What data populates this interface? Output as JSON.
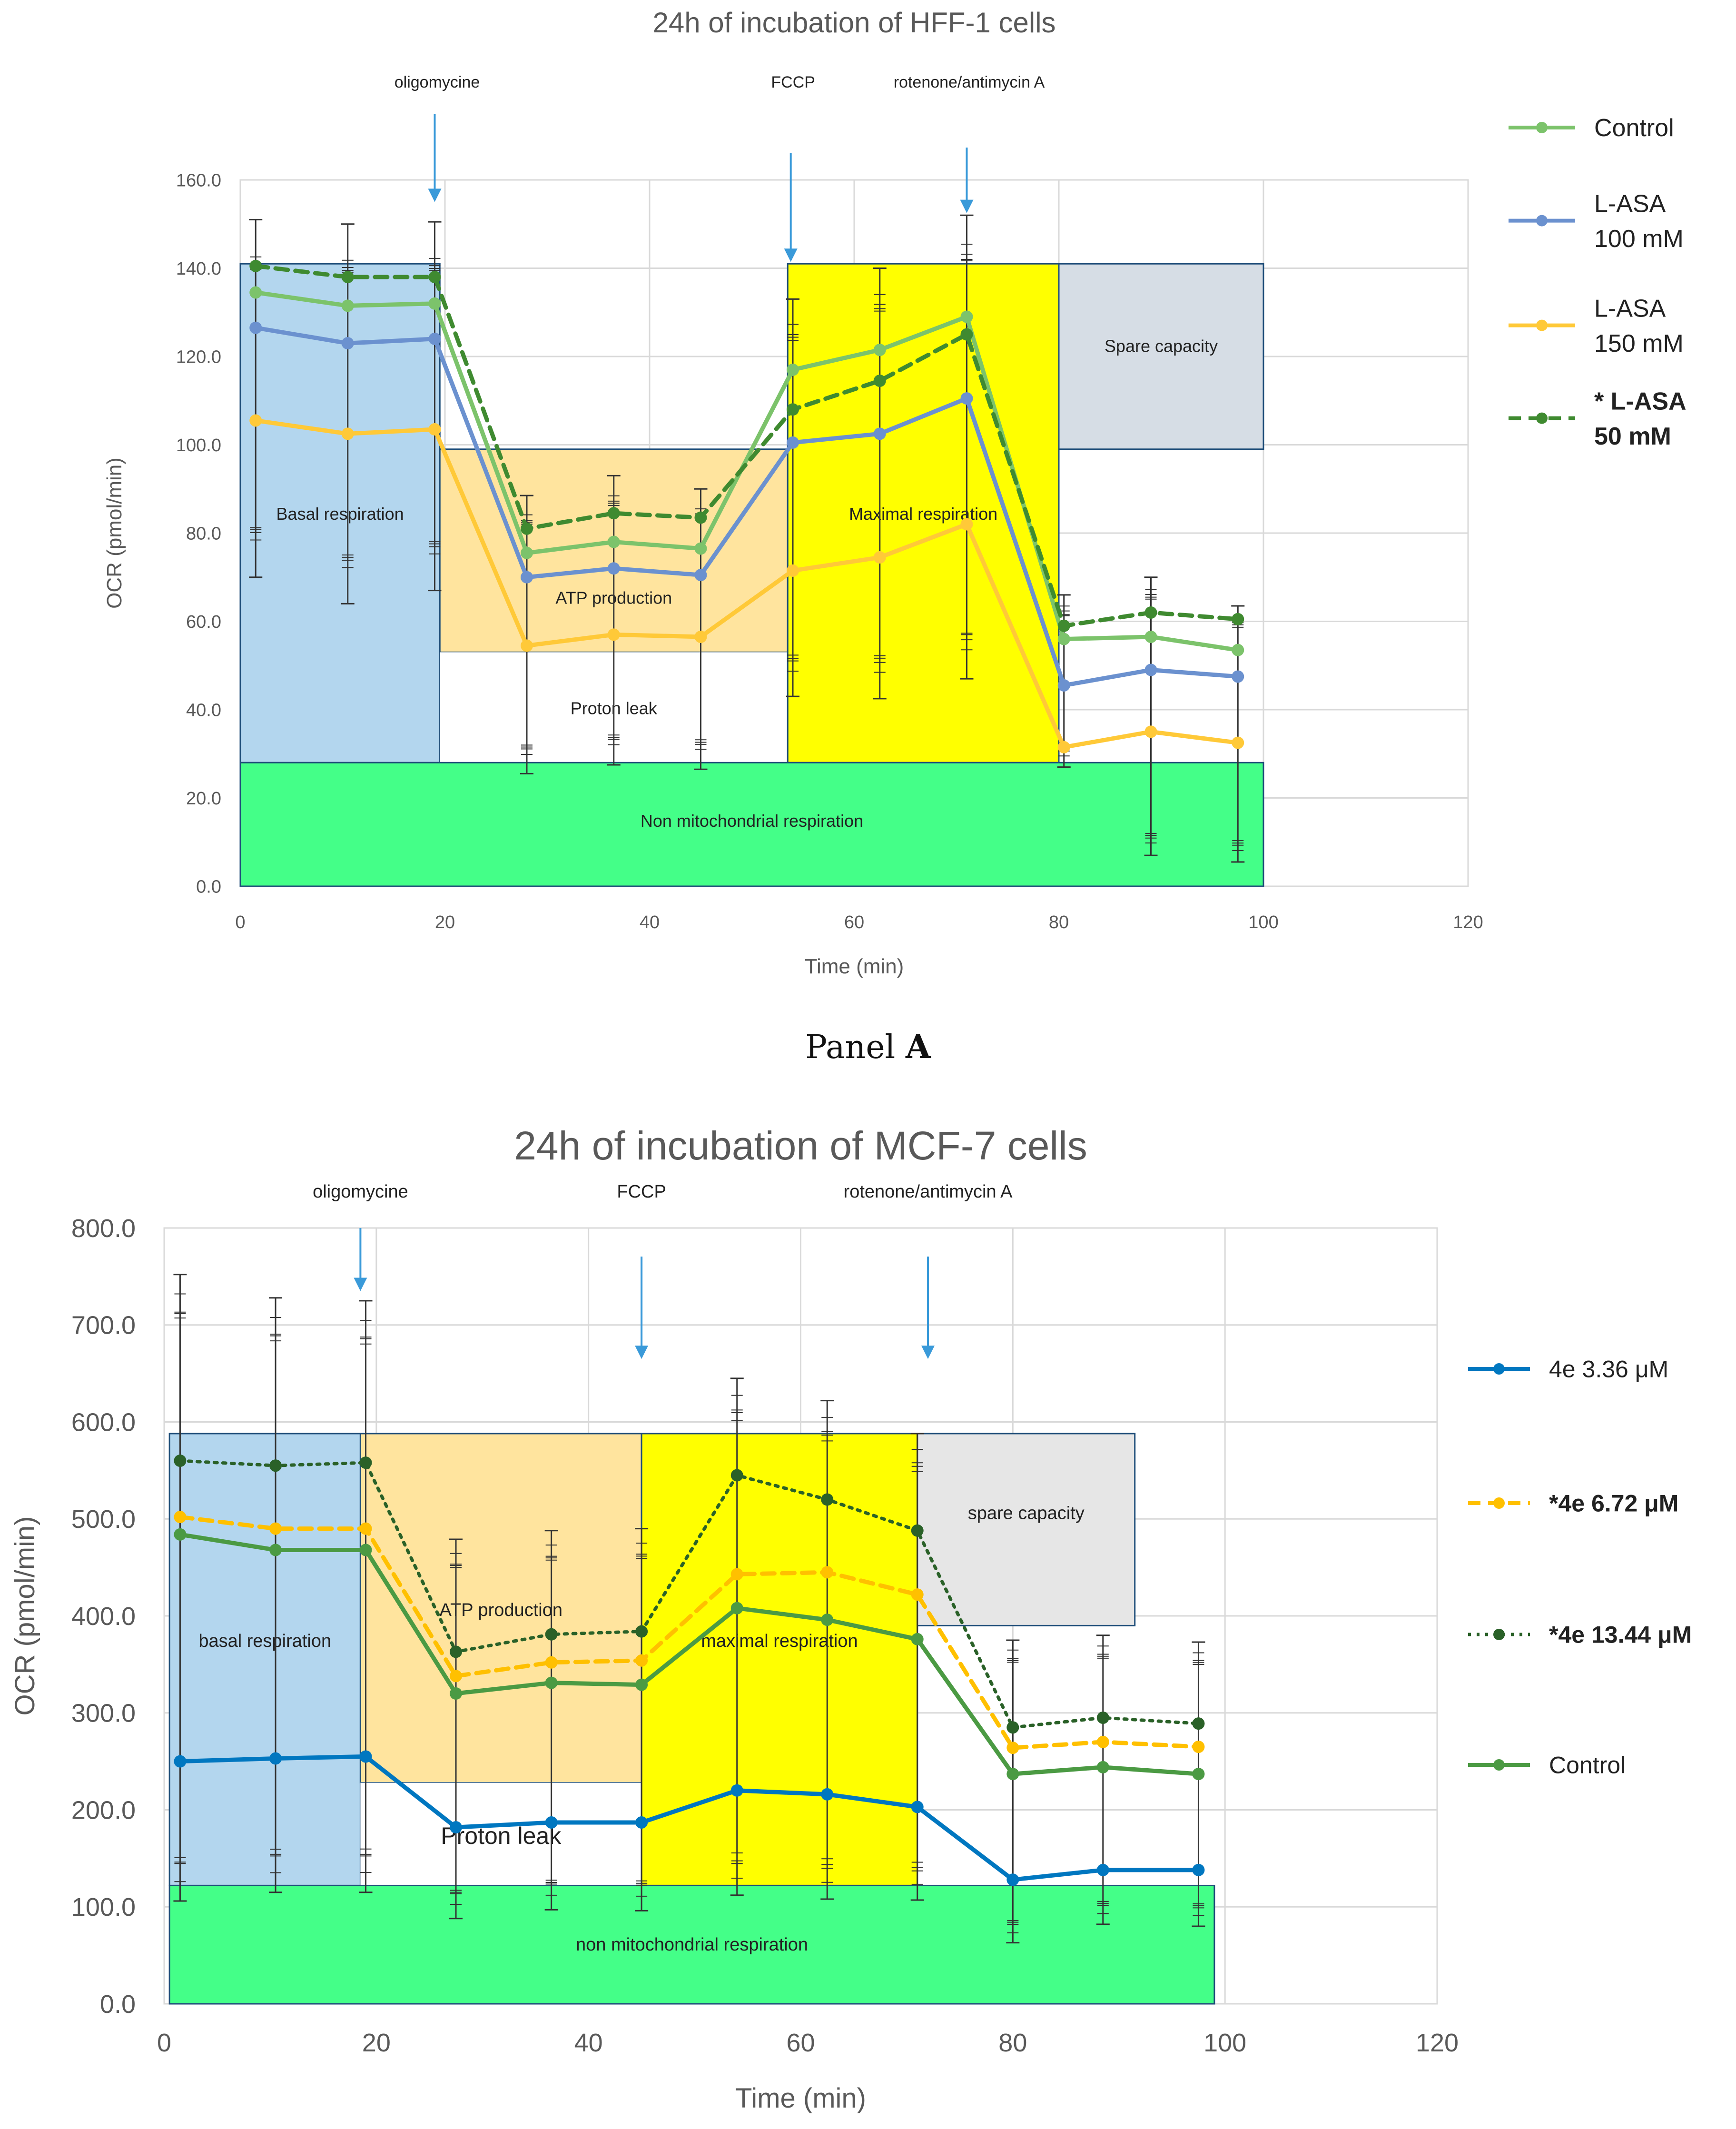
{
  "caption": {
    "prefix": "Panel",
    "letter": "A"
  },
  "chart_data": [
    {
      "id": "panel-a",
      "type": "line",
      "title": "24h of incubation of HFF-1 cells",
      "xlabel": "Time (min)",
      "ylabel": "OCR (pmol/min)",
      "xlim": [
        0,
        120
      ],
      "ylim": [
        0,
        160
      ],
      "x_ticks": [
        0,
        20,
        40,
        60,
        80,
        100,
        120
      ],
      "y_ticks": [
        "0.0",
        "20.0",
        "40.0",
        "60.0",
        "80.0",
        "100.0",
        "120.0",
        "140.0",
        "160.0"
      ],
      "grid": true,
      "x": [
        1.5,
        10.5,
        19,
        28,
        36.5,
        45,
        54,
        62.5,
        71,
        80.5,
        89,
        97.5
      ],
      "series": [
        {
          "name": "Control",
          "color": "#7cc36b",
          "dash": "solid",
          "values": [
            134.5,
            131.5,
            132,
            75.5,
            78,
            76.5,
            117,
            121.5,
            129,
            56,
            56.5,
            53.5
          ]
        },
        {
          "name": "L-ASA 100 mM",
          "color": "#6b91cf",
          "dash": "solid",
          "values": [
            126.5,
            123,
            124,
            70,
            72,
            70.5,
            100.5,
            102.5,
            110.5,
            45.5,
            49,
            47.5
          ]
        },
        {
          "name": "L-ASA 150 mM",
          "color": "#ffc938",
          "dash": "solid",
          "values": [
            105.5,
            102.5,
            103.5,
            54.5,
            57,
            56.5,
            71.5,
            74.5,
            82,
            31.5,
            35,
            32.5
          ]
        },
        {
          "name": "* L-ASA 50 mM",
          "color": "#3f8a30",
          "dash": "dashed",
          "values": [
            140.5,
            138,
            138,
            81,
            84.5,
            83.5,
            108,
            114.5,
            125,
            59,
            62,
            60.5
          ]
        }
      ],
      "error_bars": {
        "upper": [
          151,
          150,
          150.5,
          88.5,
          93,
          90,
          133,
          140,
          152,
          66,
          70,
          63.5
        ],
        "lower": [
          70,
          64,
          67,
          25.5,
          27.5,
          26.5,
          43,
          42.5,
          47,
          27,
          7,
          5.5
        ]
      },
      "legend": [
        {
          "lines": [
            "Control"
          ],
          "bold": false
        },
        {
          "lines": [
            "L-ASA",
            "100 mM"
          ],
          "bold": false
        },
        {
          "lines": [
            "L-ASA",
            "150 mM"
          ],
          "bold": false
        },
        {
          "lines": [
            "* L-ASA",
            "50 mM"
          ],
          "bold": true
        }
      ],
      "legend_position": "right",
      "regions": [
        {
          "label": "Basal respiration",
          "color": "#b3d6ee",
          "x": [
            0,
            19.5
          ],
          "y": [
            28,
            141
          ]
        },
        {
          "label": "ATP production",
          "color": "#ffe49e",
          "x": [
            19.5,
            53.5
          ],
          "y": [
            53,
            99
          ]
        },
        {
          "label": "Proton leak",
          "color": "#ffffff",
          "x": [
            19.5,
            53.5
          ],
          "y": [
            28,
            53
          ]
        },
        {
          "label": "Maximal respiration",
          "color": "#ffff00",
          "x": [
            53.5,
            80
          ],
          "y": [
            28,
            141
          ]
        },
        {
          "label": "Spare capacity",
          "color": "#d6dde5",
          "x": [
            80,
            100
          ],
          "y": [
            99,
            141
          ]
        },
        {
          "label": "Non mitochondrial respiration",
          "color": "#44ff88",
          "x": [
            0,
            100
          ],
          "y": [
            0,
            28
          ]
        }
      ],
      "injections": [
        {
          "label": "oligomycine",
          "x": 19
        },
        {
          "label": "FCCP",
          "x": 53.8
        },
        {
          "label": "rotenone/antimycin A",
          "x": 71
        }
      ]
    },
    {
      "id": "panel-b",
      "type": "line",
      "title": "24h of incubation of MCF-7 cells",
      "xlabel": "Time (min)",
      "ylabel": "OCR (pmol/min)",
      "xlim": [
        0,
        120
      ],
      "ylim": [
        0,
        800
      ],
      "x_ticks": [
        0,
        20,
        40,
        60,
        80,
        100,
        120
      ],
      "y_ticks": [
        "0.0",
        "100.0",
        "200.0",
        "300.0",
        "400.0",
        "500.0",
        "600.0",
        "700.0",
        "800.0"
      ],
      "grid": true,
      "x": [
        1.5,
        10.5,
        19,
        27.5,
        36.5,
        45,
        54,
        62.5,
        71,
        80,
        88.5,
        97.5
      ],
      "series": [
        {
          "name": "4e 3.36 μM",
          "color": "#0077c0",
          "dash": "solid",
          "values": [
            250,
            253,
            255,
            182,
            187,
            187,
            220,
            216,
            203,
            128,
            138,
            138
          ]
        },
        {
          "name": "*4e 6.72 μM",
          "color": "#ffc000",
          "dash": "dashed",
          "values": [
            502,
            490,
            490,
            338,
            352,
            354,
            443,
            445,
            422,
            264,
            270,
            265
          ]
        },
        {
          "name": "*4e 13.44 μM",
          "color": "#2a6128",
          "dash": "dotted",
          "values": [
            560,
            555,
            558,
            363,
            381,
            384,
            545,
            520,
            488,
            285,
            295,
            289
          ]
        },
        {
          "name": "Control",
          "color": "#4b9a43",
          "dash": "solid",
          "values": [
            484,
            468,
            468,
            320,
            331,
            329,
            408,
            396,
            376,
            237,
            244,
            237
          ]
        }
      ],
      "error_bars": {
        "upper": [
          752,
          728,
          725,
          479,
          488,
          490,
          645,
          622,
          588,
          375,
          380,
          373
        ],
        "lower": [
          106,
          115,
          115,
          88,
          97,
          96,
          112,
          108,
          107,
          63,
          82,
          80
        ]
      },
      "legend": [
        {
          "lines": [
            "4e 3.36 μM"
          ],
          "bold": false
        },
        {
          "lines": [
            "*4e 6.72 μM"
          ],
          "bold": true
        },
        {
          "lines": [
            "*4e 13.44 μM"
          ],
          "bold": true
        },
        {
          "lines": [
            "Control"
          ],
          "bold": false
        }
      ],
      "legend_position": "right",
      "regions": [
        {
          "label": "basal respiration",
          "color": "#b3d6ee",
          "x": [
            0.5,
            18.5
          ],
          "y": [
            122,
            588
          ]
        },
        {
          "label": "ATP production",
          "color": "#ffe49e",
          "x": [
            18.5,
            45
          ],
          "y": [
            228,
            588
          ]
        },
        {
          "label": "Proton leak",
          "color": "#ffffff",
          "x": [
            18.5,
            45
          ],
          "y": [
            122,
            228
          ]
        },
        {
          "label": "maximal respiration",
          "color": "#ffff00",
          "x": [
            45,
            71
          ],
          "y": [
            122,
            588
          ]
        },
        {
          "label": "spare capacity",
          "color": "#e6e6e6",
          "x": [
            71,
            91.5
          ],
          "y": [
            390,
            588
          ]
        },
        {
          "label": "non mitochondrial respiration",
          "color": "#44ff88",
          "x": [
            0.5,
            99
          ],
          "y": [
            0,
            122
          ]
        }
      ],
      "injections": [
        {
          "label": "oligomycine",
          "x": 18.5
        },
        {
          "label": "FCCP",
          "x": 45
        },
        {
          "label": "rotenone/antimycin A",
          "x": 72
        }
      ]
    }
  ]
}
